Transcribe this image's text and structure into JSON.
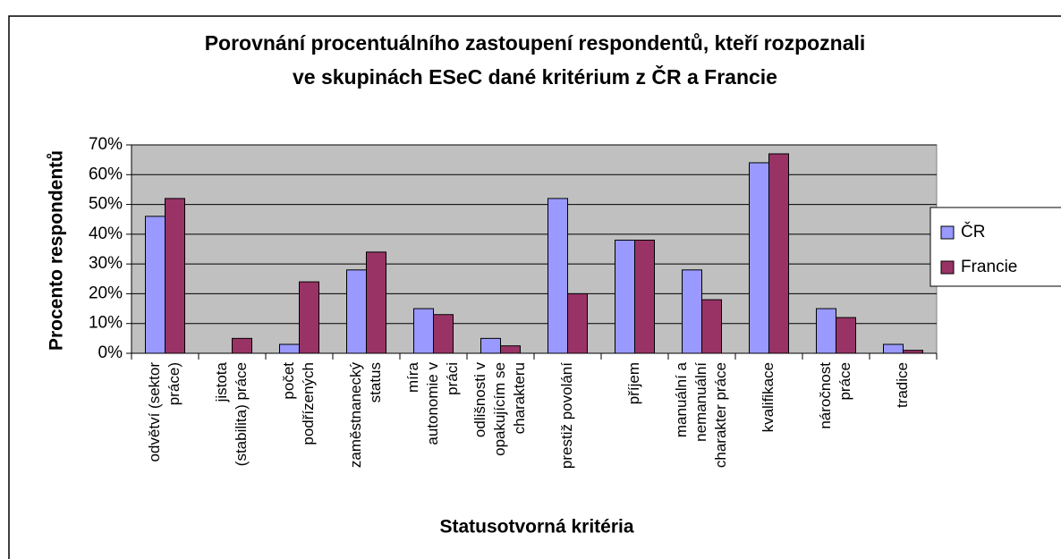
{
  "chart_data": {
    "type": "bar",
    "title": [
      "Porovnání procentuálního zastoupení respondentů, kteří rozpoznali",
      "ve skupinách ESeC dané kritérium z ČR a Francie"
    ],
    "x_label": "Statusotvorná kritéria",
    "y_label": "Procento respondentů",
    "categories": [
      [
        "odvětví (sektor",
        "práce)"
      ],
      [
        "jistota",
        "(stabilita) práce"
      ],
      [
        "počet",
        "podřízených"
      ],
      [
        "zaměstnanecký",
        "status"
      ],
      [
        "míra",
        "autonomie v",
        "práci"
      ],
      [
        "odlišnosti v",
        "opakujícím se",
        "charakteru"
      ],
      [
        "prestiž povolání"
      ],
      [
        "příjem"
      ],
      [
        "manuální a",
        "nemanuální",
        "charakter práce"
      ],
      [
        "kvalifikace"
      ],
      [
        "náročnost",
        "práce"
      ],
      [
        "tradice"
      ]
    ],
    "series": [
      {
        "name": "ČR",
        "color": "#9999ff",
        "values": [
          46,
          0,
          3,
          28,
          15,
          5,
          52,
          38,
          28,
          64,
          15,
          3
        ]
      },
      {
        "name": "Francie",
        "color": "#993366",
        "values": [
          52,
          5,
          24,
          34,
          13,
          2.5,
          20,
          38,
          18,
          67,
          12,
          1
        ]
      }
    ],
    "ylim": [
      0,
      70
    ],
    "yticks": [
      {
        "value": 0,
        "label": "0%"
      },
      {
        "value": 10,
        "label": "10%"
      },
      {
        "value": 20,
        "label": "20%"
      },
      {
        "value": 30,
        "label": "30%"
      },
      {
        "value": 40,
        "label": "40%"
      },
      {
        "value": 50,
        "label": "50%"
      },
      {
        "value": 60,
        "label": "60%"
      },
      {
        "value": 70,
        "label": "70%"
      }
    ],
    "grid": true,
    "legend": "right"
  }
}
